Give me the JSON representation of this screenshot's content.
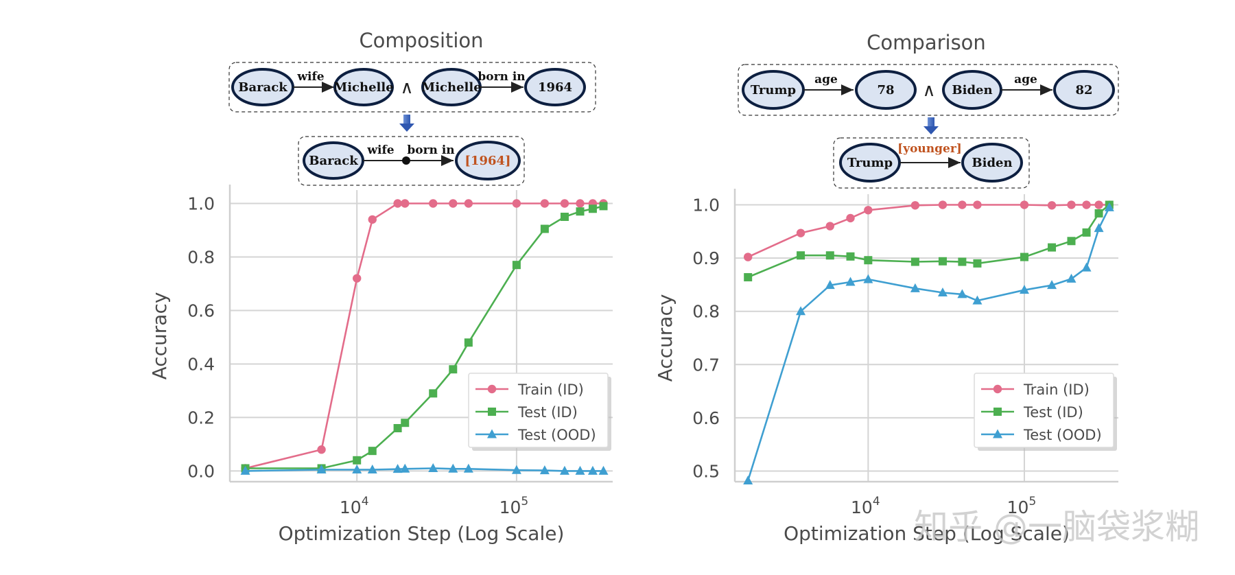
{
  "chart_data": [
    {
      "type": "line",
      "title": "Composition",
      "xlabel": "Optimization Step (Log Scale)",
      "ylabel": "Accuracy",
      "xscale": "log",
      "xlim": [
        1600,
        400000
      ],
      "ylim": [
        -0.04,
        1.05
      ],
      "yticks": [
        "0.0",
        "0.2",
        "0.4",
        "0.6",
        "0.8",
        "1.0"
      ],
      "ytick_values": [
        0,
        0.2,
        0.4,
        0.6,
        0.8,
        1.0
      ],
      "xticks": [
        {
          "base": "10",
          "exp": "4",
          "value": 10000
        },
        {
          "base": "10",
          "exp": "5",
          "value": 100000
        }
      ],
      "legend_position": "lower-right",
      "series": [
        {
          "name": "Train (ID)",
          "color": "#e36c8a",
          "marker": "circle",
          "x": [
            2000,
            6000,
            10000,
            12500,
            18000,
            20000,
            30000,
            40000,
            50000,
            100000,
            150000,
            200000,
            250000,
            300000,
            350000
          ],
          "y": [
            0.01,
            0.08,
            0.72,
            0.94,
            1.0,
            1.0,
            1.0,
            1.0,
            1.0,
            1.0,
            1.0,
            1.0,
            1.0,
            1.0,
            1.0
          ]
        },
        {
          "name": "Test (ID)",
          "color": "#4caf50",
          "marker": "square",
          "x": [
            2000,
            6000,
            10000,
            12500,
            18000,
            20000,
            30000,
            40000,
            50000,
            100000,
            150000,
            200000,
            250000,
            300000,
            350000
          ],
          "y": [
            0.01,
            0.01,
            0.04,
            0.075,
            0.16,
            0.18,
            0.29,
            0.38,
            0.48,
            0.77,
            0.905,
            0.95,
            0.97,
            0.98,
            0.99
          ]
        },
        {
          "name": "Test (OOD)",
          "color": "#3f9fd1",
          "marker": "triangle",
          "x": [
            2000,
            6000,
            10000,
            12500,
            18000,
            20000,
            30000,
            40000,
            50000,
            100000,
            150000,
            200000,
            250000,
            300000,
            350000
          ],
          "y": [
            0.0,
            0.005,
            0.005,
            0.005,
            0.007,
            0.008,
            0.01,
            0.008,
            0.008,
            0.003,
            0.002,
            0.0,
            0.0,
            0.0,
            0.0
          ]
        }
      ]
    },
    {
      "type": "line",
      "title": "Comparison",
      "xlabel": "Optimization Step (Log Scale)",
      "ylabel": "Accuracy",
      "xscale": "log",
      "xlim": [
        1400,
        400000
      ],
      "ylim": [
        0.48,
        1.02
      ],
      "yticks": [
        "0.5",
        "0.6",
        "0.7",
        "0.8",
        "0.9",
        "1.0"
      ],
      "ytick_values": [
        0.5,
        0.6,
        0.7,
        0.8,
        0.9,
        1.0
      ],
      "xticks": [
        {
          "base": "10",
          "exp": "4",
          "value": 10000
        },
        {
          "base": "10",
          "exp": "5",
          "value": 100000
        }
      ],
      "legend_position": "lower-right",
      "series": [
        {
          "name": "Train (ID)",
          "color": "#e36c8a",
          "marker": "circle",
          "x": [
            1700,
            3700,
            5700,
            7700,
            10000,
            20000,
            30000,
            40000,
            50000,
            100000,
            150000,
            200000,
            250000,
            300000,
            350000
          ],
          "y": [
            0.902,
            0.947,
            0.96,
            0.975,
            0.99,
            0.999,
            1.0,
            1.0,
            1.0,
            1.0,
            0.999,
            1.0,
            1.0,
            1.0,
            1.0
          ]
        },
        {
          "name": "Test (ID)",
          "color": "#4caf50",
          "marker": "square",
          "x": [
            1700,
            3700,
            5700,
            7700,
            10000,
            20000,
            30000,
            40000,
            50000,
            100000,
            150000,
            200000,
            250000,
            300000,
            350000
          ],
          "y": [
            0.864,
            0.905,
            0.905,
            0.903,
            0.896,
            0.893,
            0.894,
            0.893,
            0.89,
            0.902,
            0.92,
            0.932,
            0.948,
            0.984,
            1.0
          ]
        },
        {
          "name": "Test (OOD)",
          "color": "#3f9fd1",
          "marker": "triangle",
          "x": [
            1700,
            3700,
            5700,
            7700,
            10000,
            20000,
            30000,
            40000,
            50000,
            100000,
            150000,
            200000,
            250000,
            300000,
            350000
          ],
          "y": [
            0.482,
            0.8,
            0.849,
            0.855,
            0.86,
            0.843,
            0.835,
            0.832,
            0.82,
            0.84,
            0.849,
            0.861,
            0.882,
            0.956,
            0.995
          ]
        }
      ]
    }
  ],
  "diagrams": {
    "composition": {
      "top": {
        "n1": "Barack",
        "e1": "wife",
        "n2": "Michelle",
        "op": "∧",
        "n3": "Michelle",
        "e2": "born in",
        "n4": "1964"
      },
      "bottom": {
        "n1": "Barack",
        "e1": "wife",
        "e2": "born in",
        "n2": "[1964]"
      }
    },
    "comparison": {
      "top": {
        "n1": "Trump",
        "e1": "age",
        "n2": "78",
        "op": "∧",
        "n3": "Biden",
        "e2": "age",
        "n4": "82"
      },
      "bottom": {
        "n1": "Trump",
        "e1": "[younger]",
        "n2": "Biden"
      }
    }
  },
  "watermark": "知乎 @一脑袋浆糊"
}
